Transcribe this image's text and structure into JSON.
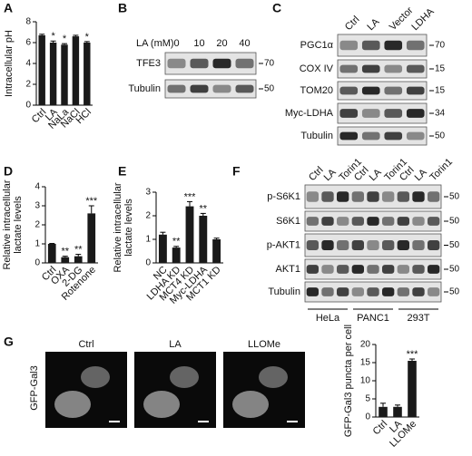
{
  "chart_data": [
    {
      "type": "bar",
      "panel": "A",
      "ylabel": [
        "Intracellular pH"
      ],
      "categories": [
        "Ctrl",
        "LA",
        "NaLa",
        "NaCl",
        "HCl"
      ],
      "values": [
        6.7,
        6.0,
        5.8,
        6.6,
        6.0
      ],
      "errors": [
        0.1,
        0.15,
        0.1,
        0.1,
        0.1
      ],
      "significance": [
        null,
        "*",
        "*",
        null,
        "*"
      ],
      "color": "#1a1a1a",
      "ylim": [
        0,
        8
      ],
      "yticks": [
        0,
        2,
        4,
        6,
        8
      ]
    },
    {
      "type": "bar",
      "panel": "D",
      "ylabel": [
        "Relative intracellular",
        "lactate levels"
      ],
      "categories": [
        "Ctrl",
        "OXA",
        "2-DG",
        "Rotenone"
      ],
      "values": [
        1.0,
        0.3,
        0.35,
        2.6
      ],
      "errors": [
        0.02,
        0.05,
        0.1,
        0.4
      ],
      "significance": [
        null,
        "**",
        "**",
        "***"
      ],
      "color": "#1a1a1a",
      "ylim": [
        0,
        4
      ],
      "yticks": [
        0,
        1,
        2,
        3,
        4
      ]
    },
    {
      "type": "bar",
      "panel": "E",
      "ylabel": [
        "Relative intracellular",
        "lactate levels"
      ],
      "categories": [
        "NC",
        "LDHA KD",
        "MCT4 KD",
        "Myc-LDHA",
        "MCT1 KD"
      ],
      "values": [
        1.2,
        0.65,
        2.4,
        2.0,
        1.0
      ],
      "errors": [
        0.1,
        0.05,
        0.2,
        0.1,
        0.05
      ],
      "significance": [
        null,
        "**",
        "***",
        "**",
        null
      ],
      "color": "#1a1a1a",
      "ylim": [
        0,
        3
      ],
      "yticks": [
        0,
        1,
        2,
        3
      ]
    },
    {
      "type": "bar",
      "ylabel": [
        "GFP-Gal3 puncta per cell"
      ],
      "categories": [
        "Ctrl",
        "LA",
        "LLOMe"
      ],
      "values": [
        2.8,
        2.8,
        15.5
      ],
      "errors": [
        1.0,
        0.5,
        0.5
      ],
      "significance": [
        null,
        null,
        "***"
      ],
      "color": "#1a1a1a",
      "ylim": [
        0,
        20
      ],
      "yticks": [
        0,
        5,
        10,
        15,
        20
      ]
    }
  ],
  "blots": [
    {
      "panel": "B",
      "header": "LA (mM)",
      "lanes": [
        "0",
        "10",
        "20",
        "40"
      ],
      "rows": [
        {
          "label": "TFE3",
          "marker": 70
        },
        {
          "label": "Tubulin",
          "marker": 50
        }
      ]
    },
    {
      "panel": "C",
      "lanes": [
        "Ctrl",
        "LA",
        "Vector",
        "LDHA"
      ],
      "rows": [
        {
          "label": "PGC1α",
          "marker": 70
        },
        {
          "label": "COX IV",
          "marker": 15
        },
        {
          "label": "TOM20",
          "marker": 15
        },
        {
          "label": "Myc-LDHA",
          "marker": 34
        },
        {
          "label": "Tubulin",
          "marker": 50
        }
      ]
    },
    {
      "panel": "F",
      "lanes": [
        "Ctrl",
        "LA",
        "Torin1",
        "Ctrl",
        "LA",
        "Torin1",
        "Ctrl",
        "LA",
        "Torin1"
      ],
      "groups": [
        "HeLa",
        "PANC1",
        "293T"
      ],
      "rows": [
        {
          "label": "p-S6K1",
          "marker": 50
        },
        {
          "label": "S6K1",
          "marker": 50
        },
        {
          "label": "p-AKT1",
          "marker": 50
        },
        {
          "label": "AKT1",
          "marker": 50
        },
        {
          "label": "Tubulin",
          "marker": 50
        }
      ]
    }
  ],
  "images": {
    "panel": "G",
    "ylabel": "GFP-Gal3",
    "labels": [
      "Ctrl",
      "LA",
      "LLOMe"
    ]
  }
}
